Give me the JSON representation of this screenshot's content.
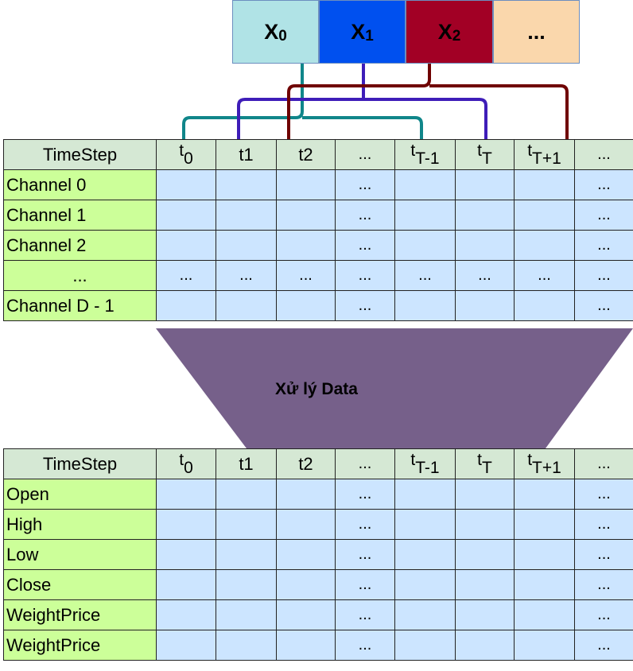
{
  "inputs": [
    {
      "base": "X",
      "sub": "0",
      "color": "#b0e3e6",
      "line_color": "#10868a"
    },
    {
      "base": "X",
      "sub": "1",
      "color": "#0050ef",
      "line_color": "#3e1db8"
    },
    {
      "base": "X",
      "sub": "2",
      "color": "#a20025",
      "line_color": "#6f0000"
    },
    {
      "base": "...",
      "sub": "",
      "color": "#fad7ac",
      "line_color": ""
    }
  ],
  "top_table": {
    "header_label": "TimeStep",
    "timesteps": [
      {
        "t": "t",
        "sub": "0"
      },
      {
        "t": "t1",
        "sub": ""
      },
      {
        "t": "t2",
        "sub": ""
      },
      {
        "t": "...",
        "sub": ""
      },
      {
        "t": "t",
        "sub": "T-1"
      },
      {
        "t": "t",
        "sub": "T"
      },
      {
        "t": "t",
        "sub": "T+1"
      },
      {
        "t": "...",
        "sub": ""
      }
    ],
    "rows": [
      "Channel 0",
      "Channel 1",
      "Channel 2",
      "...",
      "Channel D - 1"
    ]
  },
  "process_label": "Xử lý Data",
  "bottom_table": {
    "header_label": "TimeStep",
    "timesteps": [
      {
        "t": "t",
        "sub": "0"
      },
      {
        "t": "t1",
        "sub": ""
      },
      {
        "t": "t2",
        "sub": ""
      },
      {
        "t": "...",
        "sub": ""
      },
      {
        "t": "t",
        "sub": "T-1"
      },
      {
        "t": "t",
        "sub": "T"
      },
      {
        "t": "t",
        "sub": "T+1"
      },
      {
        "t": "...",
        "sub": ""
      }
    ],
    "rows": [
      "Open",
      "High",
      "Low",
      "Close",
      "WeightPrice",
      "WeightPrice"
    ]
  },
  "ellipsis": "...",
  "colors": {
    "header_bg": "#d5e8d4",
    "label_bg": "#ccff99",
    "cell_bg": "#cce5ff",
    "funnel": "#76608a"
  }
}
